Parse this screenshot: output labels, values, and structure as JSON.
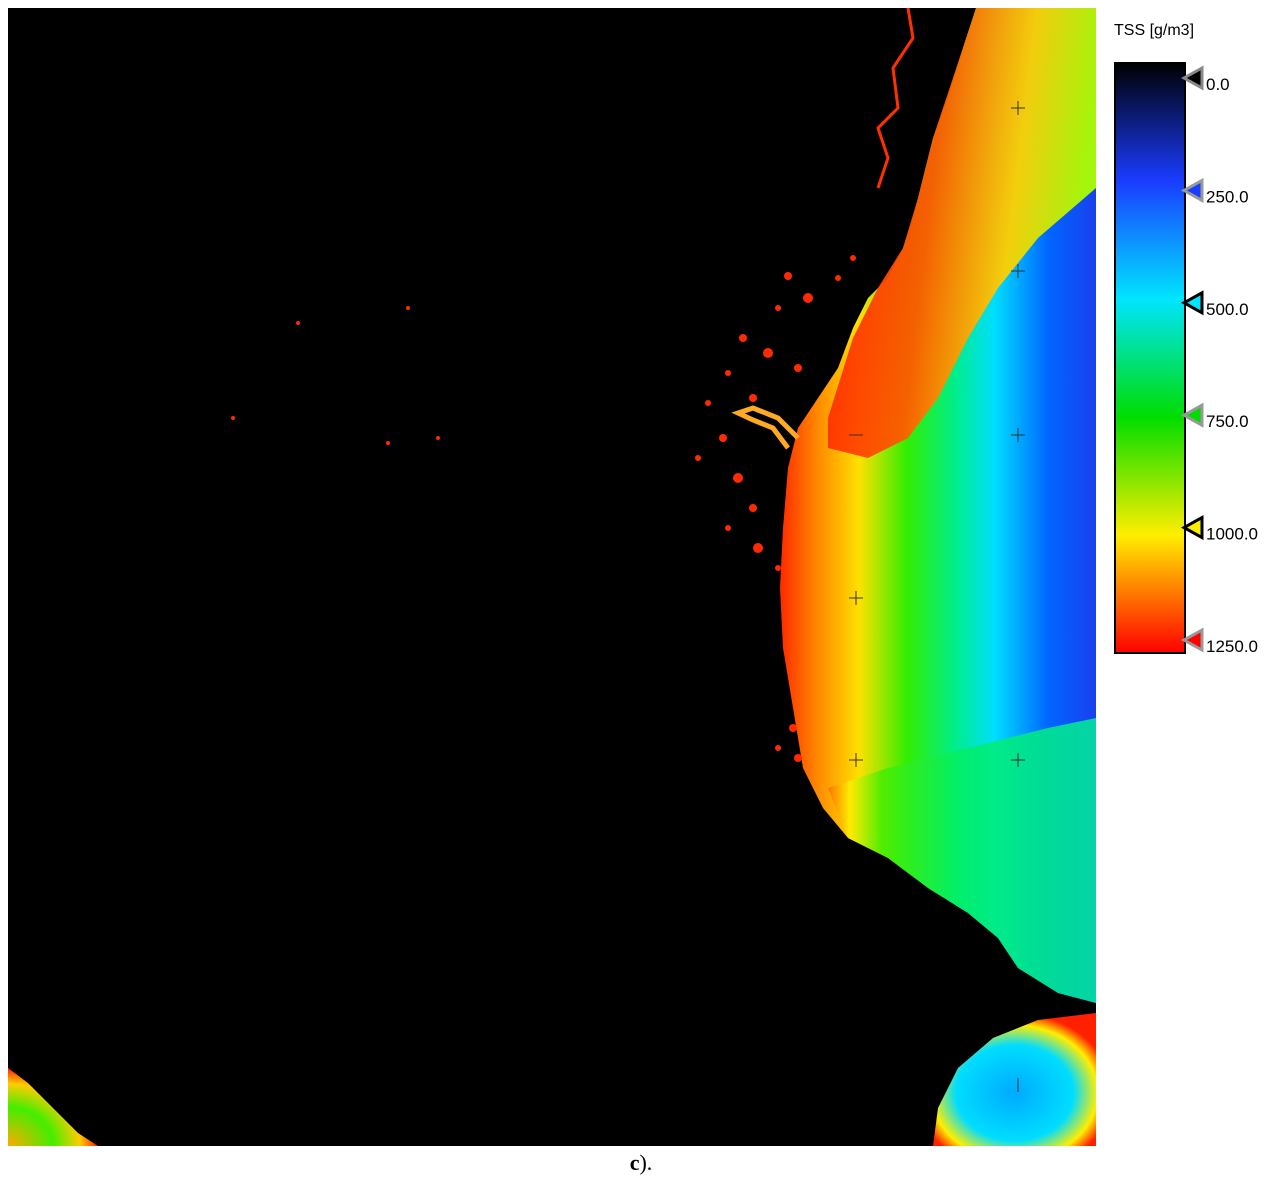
{
  "legend": {
    "title": "TSS [g/m3]",
    "ticks": [
      {
        "label": "0.0",
        "value": 0,
        "color": "#000000"
      },
      {
        "label": "250.0",
        "value": 250,
        "color": "#1a3cff"
      },
      {
        "label": "500.0",
        "value": 500,
        "color": "#00e5ff"
      },
      {
        "label": "750.0",
        "value": 750,
        "color": "#00dd00"
      },
      {
        "label": "1000.0",
        "value": 1000,
        "color": "#ffee00"
      },
      {
        "label": "1250.0",
        "value": 1250,
        "color": "#ff0000"
      }
    ]
  },
  "caption": {
    "letter": "c",
    "suffix": ")."
  },
  "colors": {
    "land": "#000000",
    "high": "#ff0000",
    "mid": "#ffff00",
    "low": "#0044ff"
  }
}
